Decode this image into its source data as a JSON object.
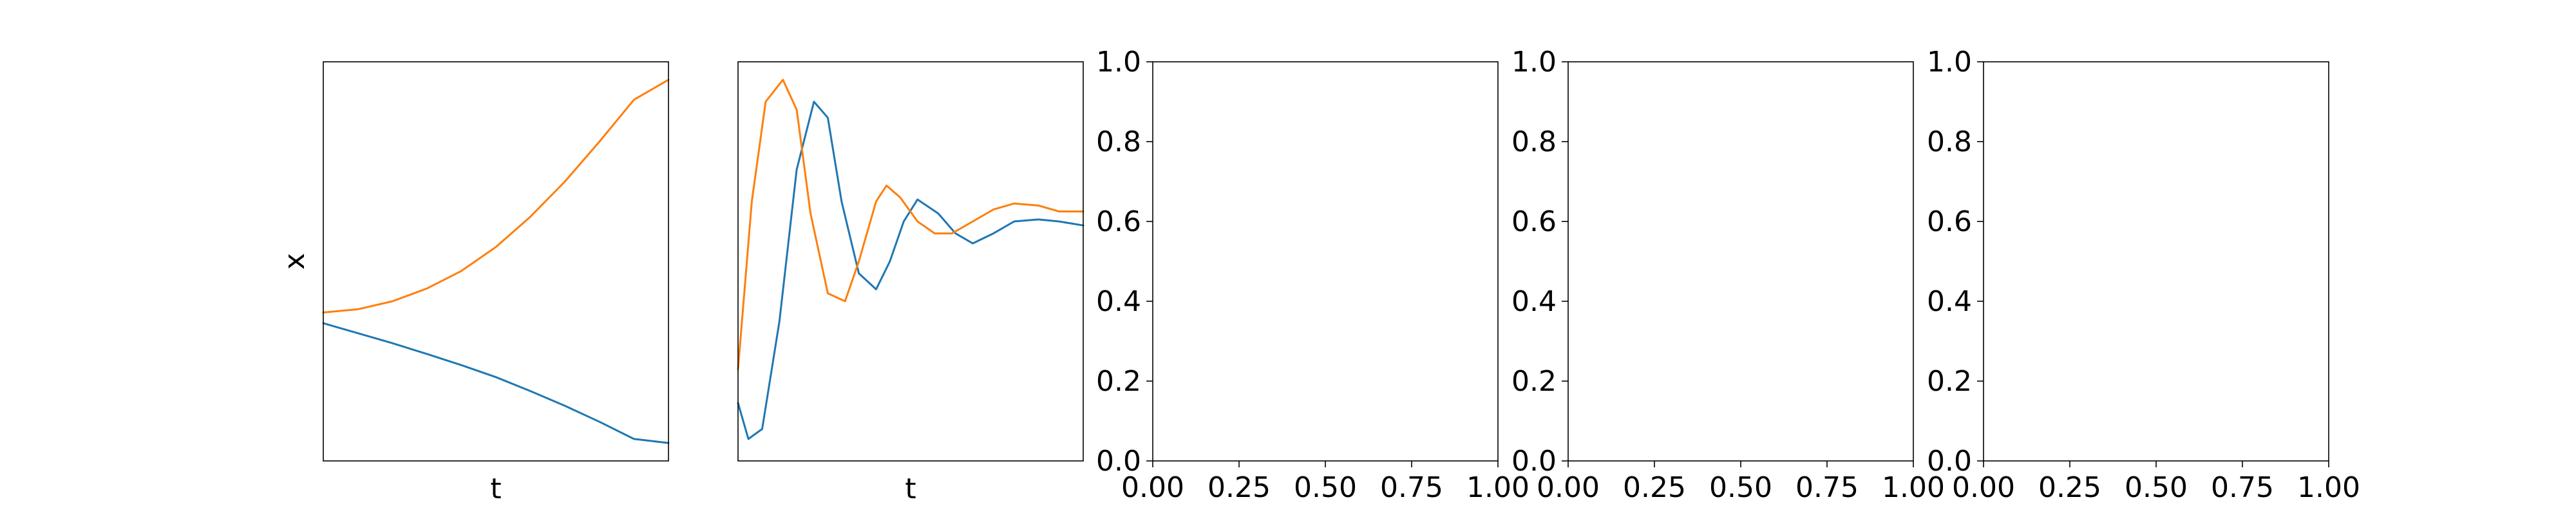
{
  "chart_data": [
    {
      "type": "line",
      "xlabel": "t",
      "ylabel": "x",
      "xticks_visible": false,
      "yticks_visible": false,
      "grid": false,
      "series": [
        {
          "color": "#1f77b4",
          "x": [
            0,
            0.1,
            0.2,
            0.3,
            0.4,
            0.5,
            0.6,
            0.7,
            0.8,
            0.9,
            1.0
          ],
          "y": [
            0.345,
            0.32,
            0.295,
            0.268,
            0.24,
            0.21,
            0.175,
            0.138,
            0.098,
            0.055,
            0.045
          ]
        },
        {
          "color": "#ff7f0e",
          "x": [
            0,
            0.1,
            0.2,
            0.3,
            0.4,
            0.5,
            0.6,
            0.7,
            0.8,
            0.9,
            1.0
          ],
          "y": [
            0.372,
            0.38,
            0.4,
            0.432,
            0.476,
            0.536,
            0.612,
            0.7,
            0.8,
            0.905,
            0.955
          ]
        }
      ]
    },
    {
      "type": "line",
      "xlabel": "t",
      "ylabel": "",
      "xticks_visible": false,
      "yticks_visible": false,
      "grid": false,
      "series": [
        {
          "color": "#1f77b4",
          "x": [
            0,
            0.03,
            0.07,
            0.12,
            0.17,
            0.22,
            0.26,
            0.3,
            0.35,
            0.4,
            0.44,
            0.48,
            0.52,
            0.58,
            0.63,
            0.68,
            0.74,
            0.8,
            0.87,
            0.93,
            1.0
          ],
          "y": [
            0.145,
            0.055,
            0.08,
            0.35,
            0.73,
            0.9,
            0.86,
            0.65,
            0.47,
            0.43,
            0.5,
            0.6,
            0.655,
            0.62,
            0.57,
            0.545,
            0.57,
            0.6,
            0.605,
            0.6,
            0.59
          ]
        },
        {
          "color": "#ff7f0e",
          "x": [
            0,
            0.04,
            0.08,
            0.13,
            0.17,
            0.21,
            0.26,
            0.31,
            0.35,
            0.4,
            0.43,
            0.47,
            0.52,
            0.57,
            0.62,
            0.68,
            0.74,
            0.8,
            0.87,
            0.93,
            1.0
          ],
          "y": [
            0.23,
            0.65,
            0.9,
            0.955,
            0.88,
            0.62,
            0.42,
            0.4,
            0.5,
            0.65,
            0.69,
            0.66,
            0.6,
            0.57,
            0.57,
            0.6,
            0.63,
            0.645,
            0.64,
            0.625,
            0.625
          ]
        }
      ]
    },
    {
      "type": "line",
      "series": [],
      "xlim": [
        0,
        1
      ],
      "ylim": [
        0,
        1
      ],
      "xticks": [
        "0.00",
        "0.25",
        "0.50",
        "0.75",
        "1.00"
      ],
      "yticks": [
        "0.0",
        "0.2",
        "0.4",
        "0.6",
        "0.8",
        "1.0"
      ],
      "grid": false
    },
    {
      "type": "line",
      "series": [],
      "xlim": [
        0,
        1
      ],
      "ylim": [
        0,
        1
      ],
      "xticks": [
        "0.00",
        "0.25",
        "0.50",
        "0.75",
        "1.00"
      ],
      "yticks": [
        "0.0",
        "0.2",
        "0.4",
        "0.6",
        "0.8",
        "1.0"
      ],
      "grid": false
    },
    {
      "type": "line",
      "series": [],
      "xlim": [
        0,
        1
      ],
      "ylim": [
        0,
        1
      ],
      "xticks": [
        "0.00",
        "0.25",
        "0.50",
        "0.75",
        "1.00"
      ],
      "yticks": [
        "0.0",
        "0.2",
        "0.4",
        "0.6",
        "0.8",
        "1.0"
      ],
      "grid": false
    }
  ]
}
